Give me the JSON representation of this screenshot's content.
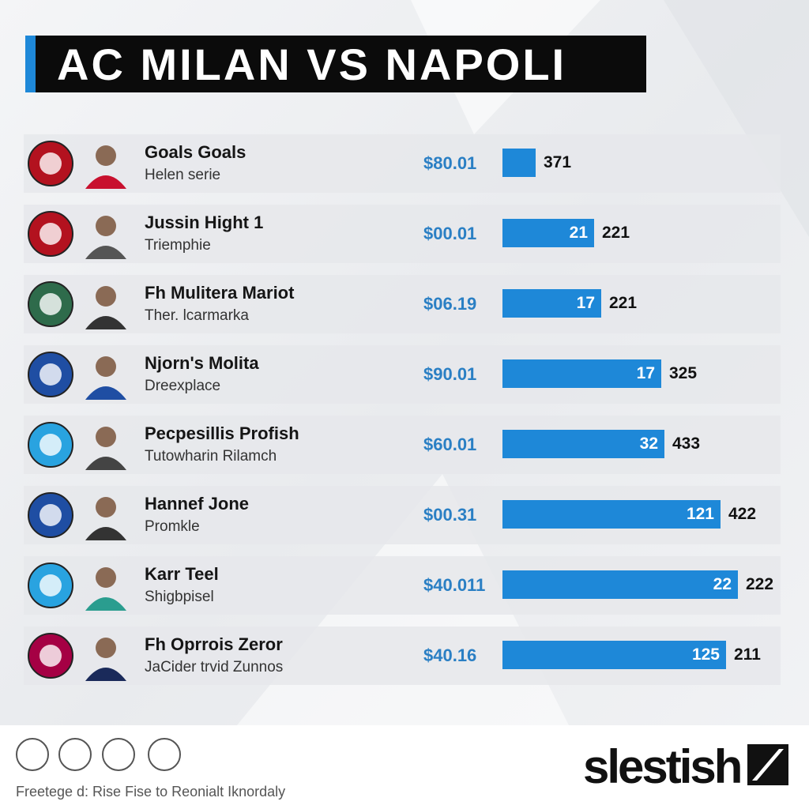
{
  "header": {
    "title": "AC MILAN VS NAPOLI"
  },
  "rows": [
    {
      "name": "Goals Goals",
      "subtitle": "Helen serie",
      "price": "$80.01",
      "value": "371"
    },
    {
      "name": "Jussin Hight 1",
      "subtitle": "Triemphie",
      "price": "$00.01",
      "bar_label": "21",
      "value": "221"
    },
    {
      "name": "Fh Mulitera Mariot",
      "subtitle": "Ther. lcarmarka",
      "price": "$06.19",
      "bar_label": "17",
      "value": "221"
    },
    {
      "name": "Njorn's Molita",
      "subtitle": "Dreexplace",
      "price": "$90.01",
      "bar_label": "17",
      "value": "325"
    },
    {
      "name": "Pecpesillis Profish",
      "subtitle": "Tutowharin Rilamch",
      "price": "$60.01",
      "bar_label": "32",
      "value": "433"
    },
    {
      "name": "Hannef Jone",
      "subtitle": "Promkle",
      "price": "$00.31",
      "bar_label": "121",
      "value": "422"
    },
    {
      "name": "Karr Teel",
      "subtitle": "Shigbpisel",
      "price": "$40.011",
      "bar_label": "22",
      "value": "222"
    },
    {
      "name": "Fh Oprrois Zeror",
      "subtitle": "JaCider trvid Zunnos",
      "price": "$40.16",
      "bar_label": "125",
      "value": "211"
    }
  ],
  "footer": {
    "text": "Freetege d: Rise Fise to Reonialt Iknordaly",
    "brand": "slestish"
  }
}
